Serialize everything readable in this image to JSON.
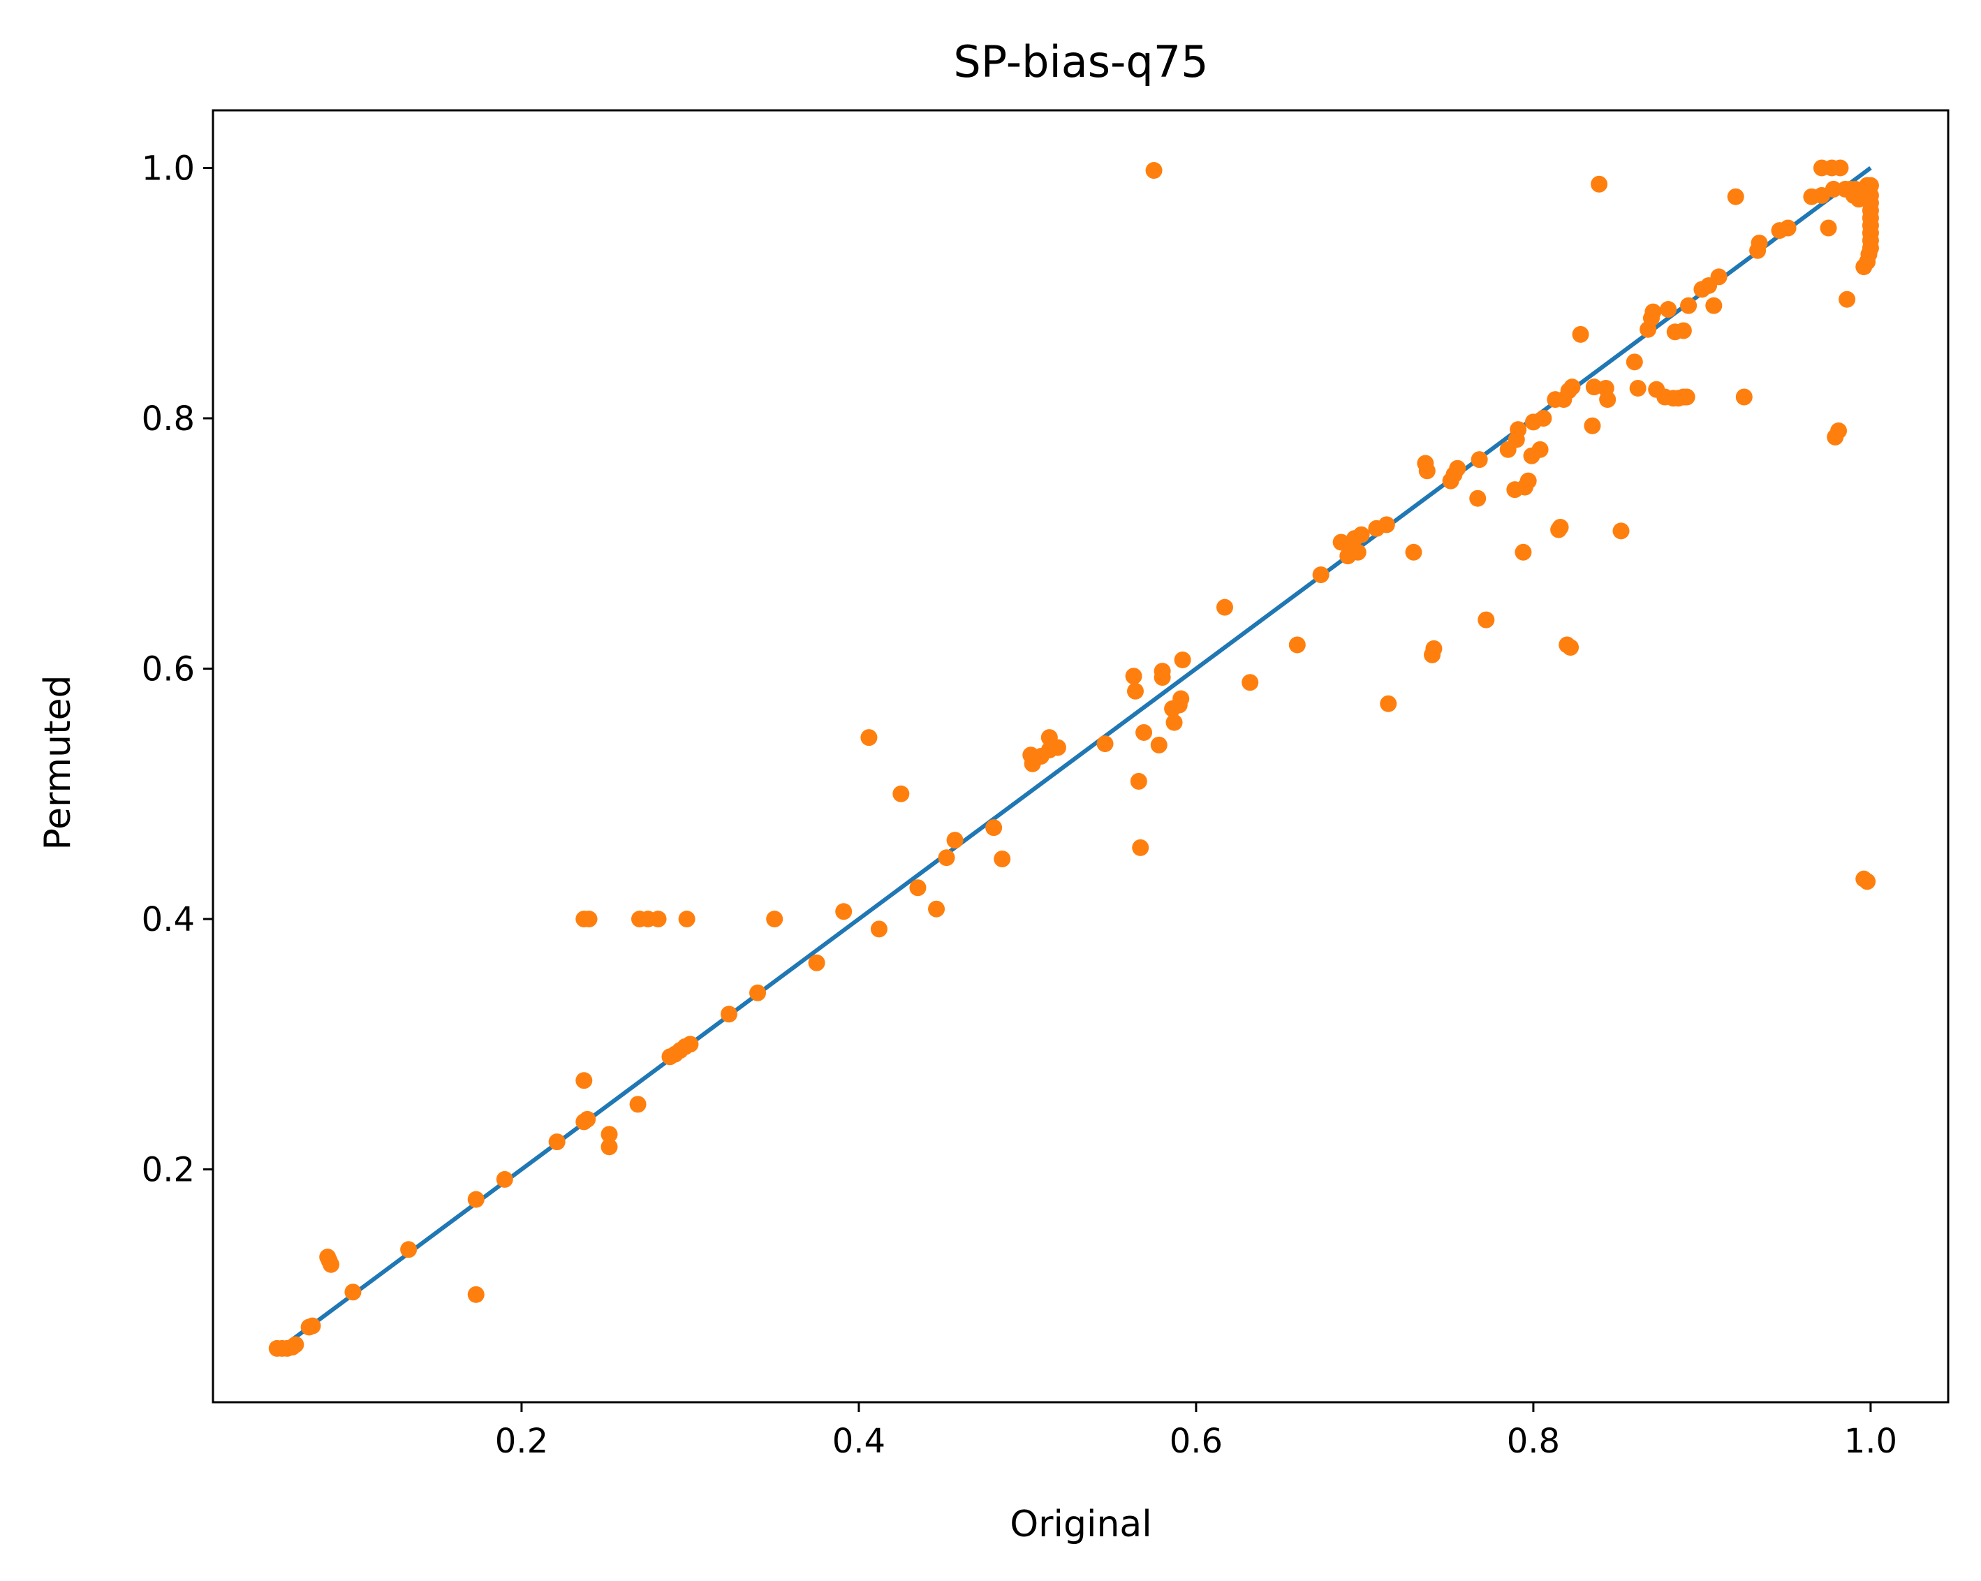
{
  "chart_data": {
    "type": "scatter",
    "title": "SP-bias-q75",
    "xlabel": "Original",
    "ylabel": "Permuted",
    "xlim": [
      0.017,
      1.046
    ],
    "ylim": [
      0.014,
      1.046
    ],
    "xticks": [
      0.2,
      0.4,
      0.6,
      0.8,
      1.0
    ],
    "xtick_labels": [
      "0.2",
      "0.4",
      "0.6",
      "0.8",
      "1.0"
    ],
    "yticks": [
      0.2,
      0.4,
      0.6,
      0.8,
      1.0
    ],
    "ytick_labels": [
      "0.2",
      "0.4",
      "0.6",
      "0.8",
      "1.0"
    ],
    "grid": false,
    "series": [
      {
        "kind": "line",
        "color": "#1f77b4",
        "points": [
          [
            0.062,
            0.062
          ],
          [
            1.0,
            1.0
          ]
        ]
      },
      {
        "kind": "scatter",
        "color": "#ff7f0e",
        "points": [
          [
            0.055,
            0.057
          ],
          [
            0.058,
            0.057
          ],
          [
            0.061,
            0.057
          ],
          [
            0.064,
            0.058
          ],
          [
            0.066,
            0.06
          ],
          [
            0.074,
            0.074
          ],
          [
            0.076,
            0.075
          ],
          [
            0.085,
            0.13
          ],
          [
            0.086,
            0.127
          ],
          [
            0.087,
            0.124
          ],
          [
            0.1,
            0.102
          ],
          [
            0.133,
            0.136
          ],
          [
            0.173,
            0.176
          ],
          [
            0.173,
            0.1
          ],
          [
            0.19,
            0.192
          ],
          [
            0.221,
            0.222
          ],
          [
            0.237,
            0.238
          ],
          [
            0.239,
            0.24
          ],
          [
            0.237,
            0.271
          ],
          [
            0.252,
            0.228
          ],
          [
            0.252,
            0.218
          ],
          [
            0.269,
            0.252
          ],
          [
            0.237,
            0.4
          ],
          [
            0.24,
            0.4
          ],
          [
            0.27,
            0.4
          ],
          [
            0.275,
            0.4
          ],
          [
            0.281,
            0.4
          ],
          [
            0.298,
            0.4
          ],
          [
            0.288,
            0.29
          ],
          [
            0.291,
            0.292
          ],
          [
            0.294,
            0.295
          ],
          [
            0.297,
            0.298
          ],
          [
            0.3,
            0.3
          ],
          [
            0.323,
            0.324
          ],
          [
            0.34,
            0.341
          ],
          [
            0.35,
            0.4
          ],
          [
            0.375,
            0.365
          ],
          [
            0.391,
            0.406
          ],
          [
            0.406,
            0.545
          ],
          [
            0.412,
            0.392
          ],
          [
            0.425,
            0.5
          ],
          [
            0.435,
            0.425
          ],
          [
            0.446,
            0.408
          ],
          [
            0.452,
            0.449
          ],
          [
            0.457,
            0.463
          ],
          [
            0.48,
            0.473
          ],
          [
            0.485,
            0.448
          ],
          [
            0.502,
            0.531
          ],
          [
            0.503,
            0.524
          ],
          [
            0.508,
            0.53
          ],
          [
            0.513,
            0.545
          ],
          [
            0.513,
            0.535
          ],
          [
            0.518,
            0.537
          ],
          [
            0.546,
            0.54
          ],
          [
            0.563,
            0.594
          ],
          [
            0.564,
            0.582
          ],
          [
            0.566,
            0.51
          ],
          [
            0.567,
            0.457
          ],
          [
            0.569,
            0.549
          ],
          [
            0.575,
            0.998
          ],
          [
            0.578,
            0.539
          ],
          [
            0.58,
            0.593
          ],
          [
            0.58,
            0.598
          ],
          [
            0.586,
            0.568
          ],
          [
            0.587,
            0.557
          ],
          [
            0.59,
            0.571
          ],
          [
            0.591,
            0.576
          ],
          [
            0.592,
            0.607
          ],
          [
            0.617,
            0.649
          ],
          [
            0.632,
            0.589
          ],
          [
            0.66,
            0.619
          ],
          [
            0.674,
            0.675
          ],
          [
            0.686,
            0.701
          ],
          [
            0.69,
            0.69
          ],
          [
            0.692,
            0.697
          ],
          [
            0.694,
            0.704
          ],
          [
            0.696,
            0.693
          ],
          [
            0.698,
            0.707
          ],
          [
            0.707,
            0.712
          ],
          [
            0.713,
            0.715
          ],
          [
            0.714,
            0.572
          ],
          [
            0.729,
            0.693
          ],
          [
            0.736,
            0.764
          ],
          [
            0.737,
            0.758
          ],
          [
            0.74,
            0.611
          ],
          [
            0.741,
            0.616
          ],
          [
            0.751,
            0.75
          ],
          [
            0.753,
            0.755
          ],
          [
            0.755,
            0.76
          ],
          [
            0.767,
            0.736
          ],
          [
            0.768,
            0.767
          ],
          [
            0.772,
            0.639
          ],
          [
            0.785,
            0.775
          ],
          [
            0.789,
            0.743
          ],
          [
            0.79,
            0.783
          ],
          [
            0.791,
            0.791
          ],
          [
            0.794,
            0.693
          ],
          [
            0.795,
            0.745
          ],
          [
            0.797,
            0.75
          ],
          [
            0.799,
            0.77
          ],
          [
            0.8,
            0.797
          ],
          [
            0.804,
            0.775
          ],
          [
            0.806,
            0.8
          ],
          [
            0.813,
            0.815
          ],
          [
            0.815,
            0.711
          ],
          [
            0.816,
            0.713
          ],
          [
            0.818,
            0.815
          ],
          [
            0.82,
            0.619
          ],
          [
            0.822,
            0.617
          ],
          [
            0.821,
            0.822
          ],
          [
            0.823,
            0.825
          ],
          [
            0.828,
            0.867
          ],
          [
            0.835,
            0.794
          ],
          [
            0.836,
            0.825
          ],
          [
            0.839,
            0.987
          ],
          [
            0.843,
            0.824
          ],
          [
            0.844,
            0.815
          ],
          [
            0.852,
            0.71
          ],
          [
            0.86,
            0.845
          ],
          [
            0.862,
            0.824
          ],
          [
            0.868,
            0.871
          ],
          [
            0.87,
            0.88
          ],
          [
            0.871,
            0.885
          ],
          [
            0.873,
            0.823
          ],
          [
            0.878,
            0.817
          ],
          [
            0.88,
            0.887
          ],
          [
            0.883,
            0.816
          ],
          [
            0.884,
            0.869
          ],
          [
            0.886,
            0.816
          ],
          [
            0.889,
            0.87
          ],
          [
            0.889,
            0.817
          ],
          [
            0.891,
            0.817
          ],
          [
            0.892,
            0.89
          ],
          [
            0.9,
            0.903
          ],
          [
            0.904,
            0.906
          ],
          [
            0.907,
            0.89
          ],
          [
            0.91,
            0.913
          ],
          [
            0.92,
            0.977
          ],
          [
            0.925,
            0.817
          ],
          [
            0.933,
            0.934
          ],
          [
            0.934,
            0.94
          ],
          [
            0.946,
            0.95
          ],
          [
            0.951,
            0.952
          ],
          [
            0.965,
            0.977
          ],
          [
            0.971,
            0.978
          ],
          [
            0.971,
            1.0
          ],
          [
            0.975,
            0.952
          ],
          [
            0.977,
            1.0
          ],
          [
            0.978,
            0.983
          ],
          [
            0.979,
            0.785
          ],
          [
            0.981,
            0.79
          ],
          [
            0.982,
            1.0
          ],
          [
            0.985,
            0.983
          ],
          [
            0.986,
            0.895
          ],
          [
            0.988,
            0.983
          ],
          [
            0.99,
            0.978
          ],
          [
            0.991,
            0.983
          ],
          [
            0.993,
            0.975
          ],
          [
            0.994,
            0.98
          ],
          [
            0.996,
            0.432
          ],
          [
            0.998,
            0.43
          ],
          [
            0.998,
            0.986
          ],
          [
            0.999,
            0.982
          ],
          [
            1.0,
            0.978
          ],
          [
            1.0,
            0.972
          ],
          [
            1.0,
            0.966
          ],
          [
            1.0,
            0.96
          ],
          [
            1.0,
            0.954
          ],
          [
            1.0,
            0.948
          ],
          [
            1.0,
            0.942
          ],
          [
            1.0,
            0.936
          ],
          [
            0.999,
            0.931
          ],
          [
            0.998,
            0.925
          ],
          [
            0.996,
            0.921
          ],
          [
            0.999,
            0.985
          ],
          [
            1.0,
            0.986
          ]
        ]
      }
    ]
  }
}
